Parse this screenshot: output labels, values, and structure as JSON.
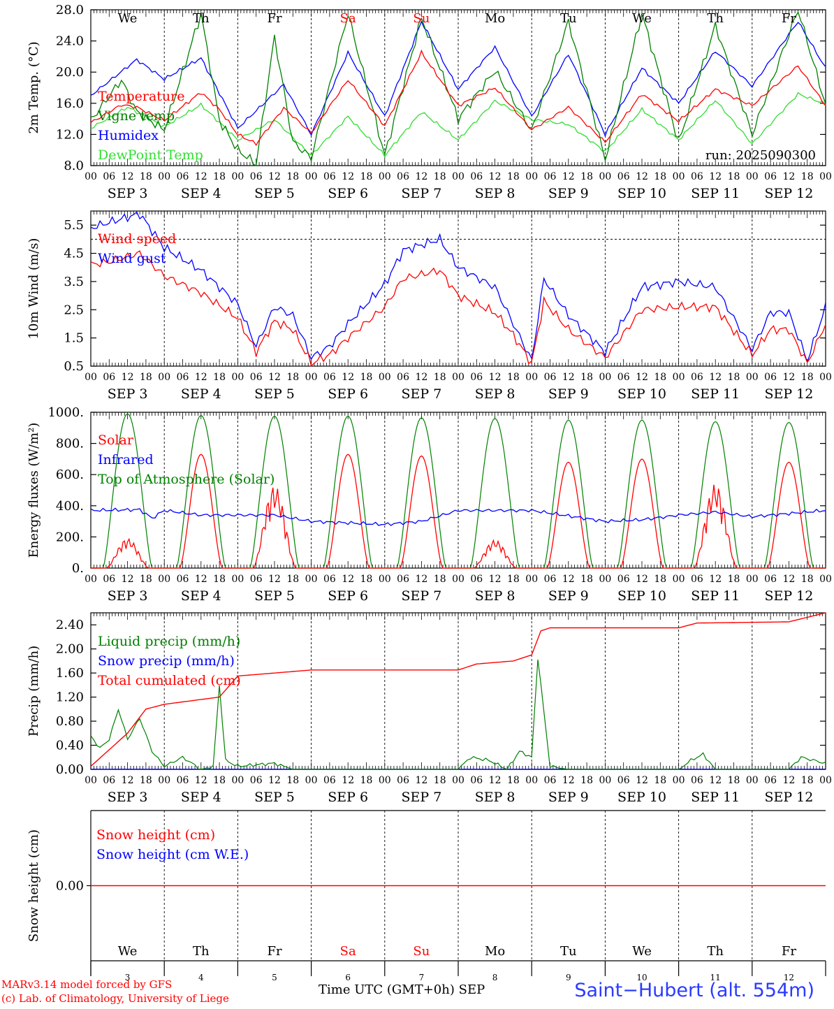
{
  "run_label": "run: 2025090300",
  "days": [
    "We",
    "Th",
    "Fr",
    "Sa",
    "Su",
    "Mo",
    "Tu",
    "We",
    "Th",
    "Fr"
  ],
  "day_nums": [
    "3",
    "4",
    "5",
    "6",
    "7",
    "8",
    "9",
    "10",
    "11",
    "12"
  ],
  "weekend_days": [
    "Sa",
    "Su"
  ],
  "date_labels": [
    "SEP  3",
    "SEP  4",
    "SEP  5",
    "SEP  6",
    "SEP  7",
    "SEP  8",
    "SEP  9",
    "SEP 10",
    "SEP 11",
    "SEP 12"
  ],
  "hour_ticks": [
    "00",
    "06",
    "12",
    "18"
  ],
  "hour_end": "00",
  "footer": {
    "model_line": "MARv3.14 model forced by GFS",
    "lab_line": "(c) Lab. of Climatology, University of Liege",
    "x_title": "Time UTC (GMT+0h)",
    "month": "SEP",
    "station": "Saint−Hubert (alt. 554m)"
  },
  "colors": {
    "red": "#ff0000",
    "blue": "#0000ff",
    "green": "#008000",
    "lightgreen": "#33dd33"
  },
  "chart_data": [
    {
      "type": "line",
      "ylabel": "2m Temp. (°C)",
      "ylim": [
        8,
        28
      ],
      "yticks": [
        "8.0",
        "12.0",
        "16.0",
        "20.0",
        "24.0",
        "28.0"
      ],
      "x_hours": [
        0,
        18,
        42,
        66,
        90,
        114,
        138,
        162,
        186,
        210,
        234
      ],
      "series": [
        {
          "name": "Temperature",
          "color": "red",
          "keys": [
            [
              0,
              13.5
            ],
            [
              10,
              15.8
            ],
            [
              15,
              15.5
            ],
            [
              24,
              13.8
            ],
            [
              36,
              17.4
            ],
            [
              42,
              15.2
            ],
            [
              48,
              12.0
            ],
            [
              54,
              10.8
            ],
            [
              63,
              15.4
            ],
            [
              72,
              12.2
            ],
            [
              84,
              19
            ],
            [
              96,
              13.1
            ],
            [
              108,
              22.5
            ],
            [
              120,
              15.7
            ],
            [
              132,
              18
            ],
            [
              144,
              12.6
            ],
            [
              156,
              15.5
            ],
            [
              168,
              11
            ],
            [
              180,
              17.2
            ],
            [
              192,
              13.7
            ],
            [
              204,
              17.8
            ],
            [
              216,
              15.7
            ],
            [
              231,
              20.8
            ],
            [
              240,
              15.7
            ]
          ]
        },
        {
          "name": "Vigne temp",
          "color": "green",
          "keys": [
            [
              0,
              13.8
            ],
            [
              10,
              19
            ],
            [
              15,
              14.9
            ],
            [
              24,
              12.6
            ],
            [
              36,
              27.5
            ],
            [
              42,
              13.8
            ],
            [
              48,
              10
            ],
            [
              54,
              8.2
            ],
            [
              60,
              24.5
            ],
            [
              66,
              11
            ],
            [
              72,
              9
            ],
            [
              84,
              27.5
            ],
            [
              96,
              9.3
            ],
            [
              108,
              27
            ],
            [
              120,
              14
            ],
            [
              132,
              20.2
            ],
            [
              144,
              12.5
            ],
            [
              156,
              26.5
            ],
            [
              168,
              8.8
            ],
            [
              180,
              27.5
            ],
            [
              192,
              11
            ],
            [
              204,
              26
            ],
            [
              216,
              12
            ],
            [
              231,
              28
            ],
            [
              240,
              15.8
            ]
          ]
        },
        {
          "name": "Humidex",
          "color": "blue",
          "keys": [
            [
              0,
              17
            ],
            [
              15,
              21.6
            ],
            [
              24,
              19.1
            ],
            [
              36,
              21.8
            ],
            [
              48,
              12.8
            ],
            [
              63,
              18.4
            ],
            [
              72,
              12
            ],
            [
              84,
              22.5
            ],
            [
              96,
              14.3
            ],
            [
              108,
              26.5
            ],
            [
              120,
              17.8
            ],
            [
              132,
              23.2
            ],
            [
              144,
              14.3
            ],
            [
              156,
              22.3
            ],
            [
              168,
              12
            ],
            [
              180,
              20.5
            ],
            [
              192,
              16
            ],
            [
              204,
              22.7
            ],
            [
              216,
              18.2
            ],
            [
              231,
              26.5
            ],
            [
              240,
              20.5
            ]
          ]
        },
        {
          "name": "DewPoint Temp",
          "color": "lightgreen",
          "keys": [
            [
              0,
              12.8
            ],
            [
              12,
              15.5
            ],
            [
              24,
              13
            ],
            [
              36,
              15.8
            ],
            [
              48,
              11.3
            ],
            [
              60,
              13.9
            ],
            [
              72,
              9.3
            ],
            [
              84,
              14.3
            ],
            [
              96,
              9.3
            ],
            [
              108,
              14.9
            ],
            [
              120,
              11.3
            ],
            [
              132,
              16.3
            ],
            [
              144,
              13.9
            ],
            [
              156,
              13.3
            ],
            [
              168,
              9.8
            ],
            [
              180,
              15.2
            ],
            [
              192,
              11.3
            ],
            [
              204,
              16.4
            ],
            [
              216,
              10.8
            ],
            [
              231,
              17.2
            ],
            [
              240,
              15.9
            ]
          ]
        }
      ]
    },
    {
      "type": "line",
      "ylabel": "10m Wind (m/s)",
      "ylim": [
        0.5,
        6.0
      ],
      "yticks": [
        "0.5",
        "1.5",
        "2.5",
        "3.5",
        "4.5",
        "5.5"
      ],
      "hline": 5.0,
      "series": [
        {
          "name": "Wind speed",
          "color": "red",
          "keys": [
            [
              0,
              4.1
            ],
            [
              6,
              4.2
            ],
            [
              16,
              4.5
            ],
            [
              24,
              3.7
            ],
            [
              36,
              3.1
            ],
            [
              48,
              2.2
            ],
            [
              54,
              1.0
            ],
            [
              60,
              2.1
            ],
            [
              66,
              1.8
            ],
            [
              72,
              0.6
            ],
            [
              78,
              0.9
            ],
            [
              84,
              1.5
            ],
            [
              96,
              2.6
            ],
            [
              102,
              3.6
            ],
            [
              114,
              3.9
            ],
            [
              120,
              3.0
            ],
            [
              132,
              2.4
            ],
            [
              138,
              1.6
            ],
            [
              144,
              0.6
            ],
            [
              148,
              2.8
            ],
            [
              156,
              1.8
            ],
            [
              168,
              0.8
            ],
            [
              180,
              2.5
            ],
            [
              192,
              2.6
            ],
            [
              204,
              2.6
            ],
            [
              216,
              0.9
            ],
            [
              222,
              1.8
            ],
            [
              228,
              1.8
            ],
            [
              234,
              0.6
            ],
            [
              240,
              2.0
            ]
          ]
        },
        {
          "name": "Wind gust",
          "color": "blue",
          "keys": [
            [
              0,
              5.4
            ],
            [
              6,
              5.6
            ],
            [
              16,
              5.9
            ],
            [
              24,
              4.7
            ],
            [
              36,
              3.9
            ],
            [
              48,
              2.7
            ],
            [
              54,
              1.2
            ],
            [
              60,
              2.6
            ],
            [
              66,
              2.3
            ],
            [
              72,
              0.8
            ],
            [
              78,
              1.2
            ],
            [
              84,
              2.0
            ],
            [
              96,
              3.4
            ],
            [
              102,
              4.6
            ],
            [
              114,
              5.0
            ],
            [
              120,
              4.0
            ],
            [
              132,
              3.3
            ],
            [
              138,
              2.0
            ],
            [
              144,
              0.7
            ],
            [
              148,
              3.6
            ],
            [
              156,
              2.3
            ],
            [
              168,
              1.0
            ],
            [
              180,
              3.3
            ],
            [
              192,
              3.5
            ],
            [
              204,
              3.3
            ],
            [
              216,
              1.1
            ],
            [
              222,
              2.4
            ],
            [
              228,
              2.4
            ],
            [
              234,
              0.7
            ],
            [
              240,
              2.6
            ]
          ]
        }
      ]
    },
    {
      "type": "line",
      "ylabel": "Energy fluxes (W/m²)",
      "ylim": [
        0,
        1000
      ],
      "yticks": [
        "0.",
        "200.",
        "400.",
        "600.",
        "800.",
        "1000."
      ],
      "solar_peaks": [
        190,
        730,
        530,
        730,
        720,
        180,
        680,
        700,
        540,
        680
      ],
      "toa_peaks": [
        990,
        980,
        975,
        975,
        965,
        960,
        950,
        950,
        940,
        935
      ],
      "series": [
        {
          "name": "Solar",
          "color": "red"
        },
        {
          "name": "Infrared",
          "color": "blue",
          "keys": [
            [
              0,
              370
            ],
            [
              16,
              375
            ],
            [
              20,
              320
            ],
            [
              24,
              370
            ],
            [
              36,
              340
            ],
            [
              48,
              340
            ],
            [
              60,
              340
            ],
            [
              72,
              300
            ],
            [
              96,
              280
            ],
            [
              108,
              300
            ],
            [
              120,
              370
            ],
            [
              132,
              370
            ],
            [
              144,
              370
            ],
            [
              168,
              300
            ],
            [
              180,
              310
            ],
            [
              192,
              340
            ],
            [
              204,
              360
            ],
            [
              216,
              330
            ],
            [
              240,
              370
            ]
          ]
        },
        {
          "name": "Top of Atmosphere (Solar)",
          "color": "green"
        }
      ]
    },
    {
      "type": "line",
      "ylabel": "Precip (mm/h)",
      "ylim": [
        0,
        2.6
      ],
      "yticks": [
        "0.00",
        "0.40",
        "0.80",
        "1.20",
        "1.60",
        "2.00",
        "2.40"
      ],
      "series": [
        {
          "name": "Liquid precip (mm/h)",
          "color": "green",
          "keys": [
            [
              0,
              0.55
            ],
            [
              3,
              0.35
            ],
            [
              6,
              0.5
            ],
            [
              9,
              1.0
            ],
            [
              12,
              0.5
            ],
            [
              16,
              0.85
            ],
            [
              20,
              0.3
            ],
            [
              24,
              0.05
            ],
            [
              30,
              0.2
            ],
            [
              36,
              0.0
            ],
            [
              40,
              0.05
            ],
            [
              42,
              1.4
            ],
            [
              44,
              0.15
            ],
            [
              48,
              0.05
            ],
            [
              60,
              0.1
            ],
            [
              66,
              0.0
            ],
            [
              120,
              0.0
            ],
            [
              124,
              0.2
            ],
            [
              130,
              0.15
            ],
            [
              136,
              0.0
            ],
            [
              140,
              0.3
            ],
            [
              144,
              0.2
            ],
            [
              146,
              1.85
            ],
            [
              150,
              0.05
            ],
            [
              156,
              0.0
            ],
            [
              192,
              0.0
            ],
            [
              196,
              0.15
            ],
            [
              200,
              0.25
            ],
            [
              204,
              0.0
            ],
            [
              228,
              0.0
            ],
            [
              232,
              0.2
            ],
            [
              236,
              0.15
            ],
            [
              240,
              0.1
            ]
          ]
        },
        {
          "name": "Snow precip (mm/h)",
          "color": "blue"
        },
        {
          "name": "Total cumulated (cm)",
          "color": "red",
          "keys": [
            [
              0,
              0.05
            ],
            [
              12,
              0.6
            ],
            [
              18,
              1.0
            ],
            [
              24,
              1.08
            ],
            [
              42,
              1.2
            ],
            [
              48,
              1.55
            ],
            [
              60,
              1.6
            ],
            [
              72,
              1.65
            ],
            [
              120,
              1.65
            ],
            [
              126,
              1.75
            ],
            [
              138,
              1.8
            ],
            [
              144,
              1.9
            ],
            [
              147,
              2.3
            ],
            [
              150,
              2.35
            ],
            [
              192,
              2.35
            ],
            [
              198,
              2.43
            ],
            [
              228,
              2.45
            ],
            [
              240,
              2.6
            ]
          ]
        }
      ]
    },
    {
      "type": "line",
      "ylabel": "Snow height (cm)",
      "ylim": [
        -1,
        1
      ],
      "yticks": [
        "0.00"
      ],
      "series": [
        {
          "name": "Snow height (cm)",
          "color": "red",
          "keys": [
            [
              0,
              0
            ],
            [
              240,
              0
            ]
          ]
        },
        {
          "name": "Snow height (cm W.E.)",
          "color": "blue"
        }
      ]
    }
  ]
}
